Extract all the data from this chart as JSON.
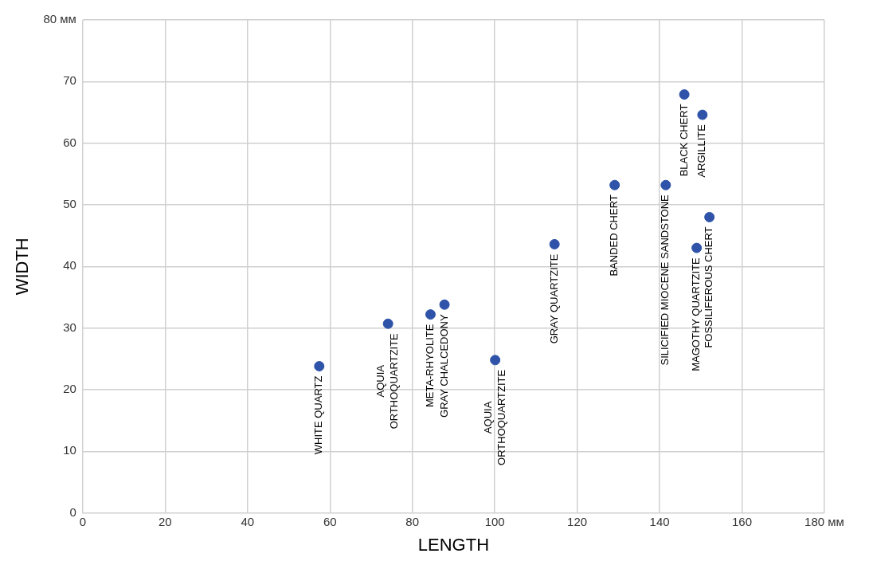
{
  "chart_data": {
    "type": "scatter",
    "xlabel": "LENGTH",
    "ylabel": "WIDTH",
    "x": [
      57.4,
      74.1,
      84.4,
      87.8,
      100.1,
      114.5,
      129.1,
      141.5,
      146.0,
      150.4,
      149.0,
      152.1
    ],
    "series": [
      {
        "color": "#2e53a8",
        "values": [
          23.8,
          30.7,
          32.2,
          33.8,
          24.8,
          43.6,
          53.2,
          53.2,
          67.9,
          64.6,
          43.0,
          48.0
        ]
      }
    ],
    "xlim": [
      0,
      180
    ],
    "xticks": [
      0,
      20,
      40,
      60,
      80,
      100,
      120,
      140,
      160,
      {
        "value": 180,
        "label": "180 мм"
      }
    ],
    "ylim": [
      0,
      80
    ],
    "yticks": [
      0,
      10,
      20,
      30,
      40,
      50,
      60,
      70,
      {
        "value": 80,
        "label": "80 мм"
      }
    ],
    "grid": true,
    "legend": false,
    "marker": "circle",
    "annotations": [
      {
        "text": "WHITE QUARTZ",
        "x": 57.4,
        "y": 23.8
      },
      {
        "text": "AQUIA\nORTHOQUARTZITE",
        "x": 74.1,
        "y": 30.7
      },
      {
        "text": "META-RHYOLITE",
        "x": 84.4,
        "y": 32.2
      },
      {
        "text": "GRAY CHALCEDONY",
        "x": 87.8,
        "y": 33.8
      },
      {
        "text": "AQUIA\nORTHOQUARTZITE",
        "x": 100.1,
        "y": 24.8
      },
      {
        "text": "GRAY QUARTZITE",
        "x": 114.5,
        "y": 43.6
      },
      {
        "text": "BANDED CHERT",
        "x": 129.1,
        "y": 53.2
      },
      {
        "text": "SILICIFIED MIOCENE SANDSTONE",
        "x": 141.5,
        "y": 53.2
      },
      {
        "text": "BLACK CHERT",
        "x": 146.0,
        "y": 67.9
      },
      {
        "text": "ARGILLITE",
        "x": 150.4,
        "y": 64.6
      },
      {
        "text": "MAGOTHY QUARTZITE",
        "x": 149.0,
        "y": 43.0
      },
      {
        "text": "FOSSILIFEROUS CHERT",
        "x": 152.1,
        "y": 48.0
      }
    ]
  }
}
